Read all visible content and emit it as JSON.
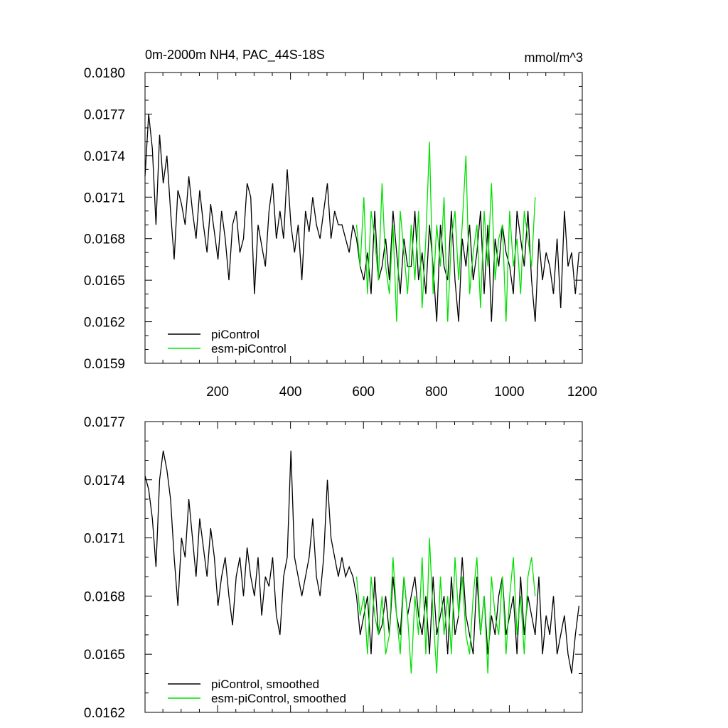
{
  "figure": {
    "title_left": "0m-2000m NH4, PAC_44S-18S",
    "title_right": "mmol/m^3"
  },
  "colors": {
    "picontrol": "#000000",
    "esm_picontrol": "#00e000"
  },
  "chart_data": [
    {
      "type": "line",
      "panel": "top",
      "xlim": [
        1,
        1200
      ],
      "ylim": [
        0.0159,
        0.018
      ],
      "xticks": [
        200,
        400,
        600,
        800,
        1000,
        1200
      ],
      "xtick_labels": [
        "200",
        "400",
        "600",
        "800",
        "1000",
        "1200"
      ],
      "yticks": [
        0.0159,
        0.0162,
        0.0165,
        0.0168,
        0.0171,
        0.0174,
        0.0177,
        0.018
      ],
      "ytick_labels": [
        "0.0159",
        "0.0162",
        "0.0165",
        "0.0168",
        "0.0171",
        "0.0174",
        "0.0177",
        "0.0180"
      ],
      "legend_position": "bottom-left",
      "grid": false,
      "series": [
        {
          "name": "piControl",
          "color": "#000000",
          "x_start": 1,
          "x_step": 10,
          "values": [
            0.01725,
            0.0177,
            0.01745,
            0.0169,
            0.01755,
            0.0172,
            0.0174,
            0.017,
            0.01665,
            0.01715,
            0.01705,
            0.0169,
            0.01725,
            0.017,
            0.0168,
            0.01715,
            0.0169,
            0.0167,
            0.01705,
            0.01685,
            0.01665,
            0.017,
            0.0168,
            0.0165,
            0.0169,
            0.017,
            0.0167,
            0.0168,
            0.0172,
            0.0171,
            0.0164,
            0.0169,
            0.01675,
            0.0166,
            0.017,
            0.0172,
            0.0168,
            0.017,
            0.0168,
            0.0173,
            0.0169,
            0.0167,
            0.0169,
            0.0165,
            0.017,
            0.01685,
            0.0171,
            0.0169,
            0.0168,
            0.017,
            0.0172,
            0.0168,
            0.017,
            0.0169,
            0.0169,
            0.0168,
            0.0167,
            0.0169,
            0.0168,
            0.0166,
            0.0165,
            0.0167,
            0.0164,
            0.017,
            0.0165,
            0.0166,
            0.0168,
            0.0165,
            0.017,
            0.0167,
            0.0164,
            0.0168,
            0.0166,
            0.0166,
            0.017,
            0.0165,
            0.0167,
            0.0164,
            0.0169,
            0.0166,
            0.0162,
            0.0169,
            0.0166,
            0.0165,
            0.017,
            0.0165,
            0.0162,
            0.0168,
            0.0166,
            0.0169,
            0.0165,
            0.0167,
            0.017,
            0.0164,
            0.0169,
            0.0162,
            0.0168,
            0.0166,
            0.0169,
            0.0167,
            0.0166,
            0.0164,
            0.017,
            0.0168,
            0.0166,
            0.017,
            0.0165,
            0.0162,
            0.0168,
            0.0165,
            0.0167,
            0.0166,
            0.0164,
            0.0168,
            0.0163,
            0.017,
            0.0166,
            0.0167,
            0.0164,
            0.0167
          ]
        },
        {
          "name": "esm-piControl",
          "color": "#00e000",
          "x_start": 581,
          "x_step": 10,
          "values": [
            0.0169,
            0.0166,
            0.0171,
            0.0164,
            0.017,
            0.0168,
            0.0165,
            0.0172,
            0.0166,
            0.0164,
            0.0169,
            0.0162,
            0.017,
            0.0167,
            0.0164,
            0.0169,
            0.0165,
            0.017,
            0.0163,
            0.0168,
            0.0175,
            0.0164,
            0.0169,
            0.0166,
            0.0171,
            0.0162,
            0.0168,
            0.017,
            0.0165,
            0.0169,
            0.0174,
            0.0164,
            0.0167,
            0.0169,
            0.0163,
            0.017,
            0.0166,
            0.0172,
            0.0165,
            0.0168,
            0.0169,
            0.0162,
            0.017,
            0.0166,
            0.0168,
            0.0164,
            0.017,
            0.0168,
            0.0166,
            0.0171
          ]
        }
      ]
    },
    {
      "type": "line",
      "panel": "bottom",
      "xlim": [
        1,
        1200
      ],
      "ylim": [
        0.0162,
        0.0177
      ],
      "xticks": [
        200,
        400,
        600,
        800,
        1000,
        1200
      ],
      "yticks": [
        0.0162,
        0.0165,
        0.0168,
        0.0171,
        0.0174,
        0.0177
      ],
      "ytick_labels": [
        "0.0162",
        "0.0165",
        "0.0168",
        "0.0171",
        "0.0174",
        "0.0177"
      ],
      "legend_position": "bottom-left",
      "grid": false,
      "series": [
        {
          "name": "piControl, smoothed",
          "color": "#000000",
          "x_start": 1,
          "x_step": 10,
          "values": [
            0.01742,
            0.01735,
            0.0172,
            0.01695,
            0.0174,
            0.01755,
            0.01745,
            0.0173,
            0.017,
            0.01675,
            0.0171,
            0.017,
            0.0173,
            0.0171,
            0.0169,
            0.0172,
            0.01705,
            0.0169,
            0.01715,
            0.017,
            0.01675,
            0.0169,
            0.017,
            0.0168,
            0.01665,
            0.0169,
            0.017,
            0.0168,
            0.01705,
            0.0169,
            0.0168,
            0.017,
            0.0167,
            0.0169,
            0.01685,
            0.017,
            0.0167,
            0.0166,
            0.0169,
            0.017,
            0.01755,
            0.017,
            0.0169,
            0.0168,
            0.0169,
            0.017,
            0.0172,
            0.0169,
            0.0168,
            0.017,
            0.0174,
            0.0171,
            0.017,
            0.0169,
            0.017,
            0.0169,
            0.01695,
            0.0169,
            0.0168,
            0.0166,
            0.0167,
            0.0168,
            0.0165,
            0.0169,
            0.0166,
            0.01665,
            0.0168,
            0.0166,
            0.0169,
            0.0167,
            0.0166,
            0.0169,
            0.0167,
            0.0168,
            0.0169,
            0.0167,
            0.0166,
            0.0168,
            0.0165,
            0.0169,
            0.0166,
            0.0167,
            0.0168,
            0.0165,
            0.0169,
            0.0166,
            0.0167,
            0.017,
            0.0167,
            0.0166,
            0.0165,
            0.0169,
            0.0166,
            0.0168,
            0.0165,
            0.0167,
            0.0166,
            0.0168,
            0.0169,
            0.0166,
            0.0167,
            0.0168,
            0.0165,
            0.0169,
            0.0166,
            0.0168,
            0.0167,
            0.0166,
            0.0169,
            0.0165,
            0.0167,
            0.0166,
            0.0168,
            0.0165,
            0.0166,
            0.0167,
            0.0165,
            0.0164,
            0.0166,
            0.01675
          ]
        },
        {
          "name": "esm-piControl, smoothed",
          "color": "#00e000",
          "x_start": 581,
          "x_step": 10,
          "values": [
            0.0169,
            0.0167,
            0.0168,
            0.0165,
            0.0169,
            0.0167,
            0.0166,
            0.0168,
            0.0165,
            0.0166,
            0.017,
            0.0167,
            0.0165,
            0.0169,
            0.0167,
            0.0164,
            0.0168,
            0.0166,
            0.017,
            0.0165,
            0.0171,
            0.0167,
            0.0164,
            0.0169,
            0.0166,
            0.0168,
            0.0165,
            0.017,
            0.0167,
            0.0169,
            0.0166,
            0.0165,
            0.0168,
            0.017,
            0.0166,
            0.0168,
            0.0164,
            0.0169,
            0.0167,
            0.0166,
            0.0169,
            0.0165,
            0.0168,
            0.017,
            0.0166,
            0.0168,
            0.0165,
            0.0169,
            0.017,
            0.0168
          ]
        }
      ]
    }
  ]
}
